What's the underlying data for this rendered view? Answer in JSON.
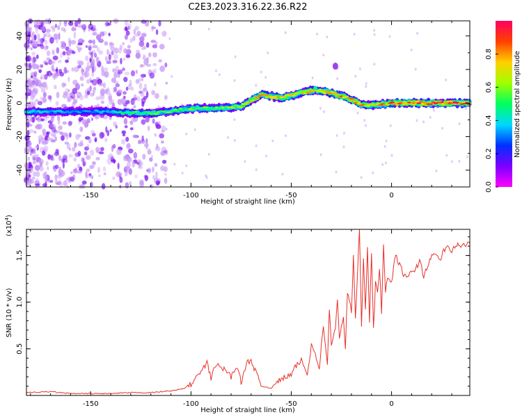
{
  "title": "C2E3.2023.316.22.36.R22",
  "chart_data": [
    {
      "type": "heatmap",
      "xlabel": "Height of straight line (km)",
      "ylabel": "Frequency (Hz)",
      "xlim": [
        -182,
        39
      ],
      "ylim": [
        -50,
        49
      ],
      "xticks": [
        -150,
        -100,
        -50,
        0
      ],
      "yticks": [
        40,
        20,
        0,
        -20,
        -40
      ],
      "colorbar": {
        "label": "Normalized spectral amplitude",
        "range": [
          0,
          1
        ],
        "ticks": [
          "0.0",
          "0.2",
          "0.4",
          "0.6",
          "0.8"
        ],
        "colormap": [
          "#ff00ff",
          "#7a00ff",
          "#0030ff",
          "#00d8ff",
          "#00ff60",
          "#a0ff00",
          "#ffd000",
          "#ff4000",
          "#ff0060"
        ]
      },
      "ridge": [
        {
          "x": -182,
          "y": -5
        },
        {
          "x": -170,
          "y": -5
        },
        {
          "x": -158,
          "y": -5
        },
        {
          "x": -145,
          "y": -5
        },
        {
          "x": -130,
          "y": -6
        },
        {
          "x": -118,
          "y": -6
        },
        {
          "x": -105,
          "y": -4
        },
        {
          "x": -95,
          "y": -3
        },
        {
          "x": -85,
          "y": -3
        },
        {
          "x": -75,
          "y": -2
        },
        {
          "x": -65,
          "y": 5
        },
        {
          "x": -55,
          "y": 3
        },
        {
          "x": -45,
          "y": 6
        },
        {
          "x": -38,
          "y": 8
        },
        {
          "x": -30,
          "y": 6
        },
        {
          "x": -22,
          "y": 3
        },
        {
          "x": -15,
          "y": -1
        },
        {
          "x": -8,
          "y": -1
        },
        {
          "x": 0,
          "y": 0
        },
        {
          "x": 10,
          "y": 0
        },
        {
          "x": 20,
          "y": 0
        },
        {
          "x": 39,
          "y": 0
        }
      ],
      "ridge_peak_amplitude": [
        {
          "x": -182,
          "a": 0.45
        },
        {
          "x": -150,
          "a": 0.35
        },
        {
          "x": -130,
          "a": 0.55
        },
        {
          "x": -100,
          "a": 0.6
        },
        {
          "x": -80,
          "a": 0.65
        },
        {
          "x": -62,
          "a": 0.85
        },
        {
          "x": -45,
          "a": 0.75
        },
        {
          "x": -28,
          "a": 0.9
        },
        {
          "x": -10,
          "a": 0.8
        },
        {
          "x": 5,
          "a": 0.95
        },
        {
          "x": 25,
          "a": 1.0
        },
        {
          "x": 39,
          "a": 1.0
        }
      ]
    },
    {
      "type": "line",
      "xlabel": "Height of straight line (km)",
      "ylabel": "SNR (10 * v/v)",
      "scale_label": "(x10",
      "scale_exponent": "4",
      "xlim": [
        -182,
        39
      ],
      "ylim": [
        0,
        1.78
      ],
      "xticks": [
        -150,
        -100,
        -50,
        0
      ],
      "yticks": [
        "0.5",
        "1.0",
        "1.5"
      ],
      "color": "#e8302a",
      "series": [
        {
          "x": [
            -182,
            -170,
            -160,
            -150,
            -140,
            -130,
            -120,
            -110,
            -104,
            -100,
            -97,
            -94,
            -92,
            -90,
            -88,
            -85,
            -82,
            -80,
            -77,
            -75,
            -72,
            -70,
            -65,
            -60,
            -55,
            -50,
            -48,
            -45,
            -42,
            -40,
            -38,
            -36,
            -34,
            -32,
            -31,
            -30,
            -28,
            -27,
            -26,
            -24,
            -23,
            -22,
            -20,
            -19,
            -18,
            -17,
            -16,
            -15,
            -14,
            -13,
            -12,
            -11,
            -10,
            -9,
            -8,
            -7,
            -6,
            -5,
            -4,
            -3,
            -2,
            0,
            2,
            4,
            6,
            8,
            10,
            12,
            14,
            16,
            18,
            20,
            22,
            24,
            26,
            28,
            30,
            32,
            34,
            36,
            39
          ],
          "y": [
            0.03,
            0.04,
            0.02,
            0.02,
            0.02,
            0.03,
            0.03,
            0.05,
            0.07,
            0.12,
            0.2,
            0.28,
            0.35,
            0.18,
            0.33,
            0.3,
            0.26,
            0.2,
            0.32,
            0.14,
            0.35,
            0.38,
            0.1,
            0.08,
            0.18,
            0.22,
            0.3,
            0.38,
            0.22,
            0.55,
            0.45,
            0.3,
            0.75,
            0.35,
            0.9,
            0.55,
            0.72,
            1.02,
            0.6,
            0.85,
            0.5,
            1.12,
            0.9,
            1.5,
            0.8,
            1.3,
            1.78,
            0.75,
            1.45,
            0.95,
            1.6,
            0.8,
            1.55,
            0.72,
            1.2,
            1.1,
            1.38,
            0.9,
            1.6,
            1.1,
            1.25,
            1.22,
            1.5,
            1.4,
            1.3,
            1.25,
            1.33,
            1.35,
            1.45,
            1.28,
            1.4,
            1.48,
            1.52,
            1.45,
            1.55,
            1.58,
            1.55,
            1.6,
            1.62,
            1.6,
            1.63
          ]
        }
      ]
    }
  ]
}
